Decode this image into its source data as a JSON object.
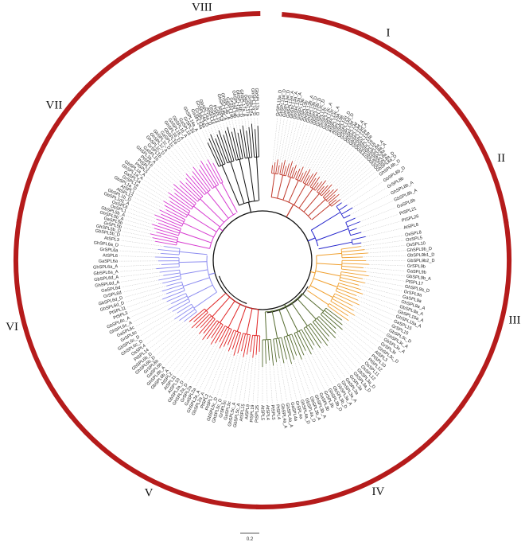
{
  "figure": {
    "type": "circular phylogenetic tree",
    "background": "#ffffff",
    "scale_bar_label": "0.2"
  },
  "colors": {
    "arc": "#b51b1b",
    "backbone": "#111111",
    "I": "#c0392b",
    "II": "#2222cc",
    "III": "#f0a030",
    "IV": "#556b2f",
    "V": "#e02222",
    "VI": "#8c8cf0",
    "VII": "#d63ad0",
    "VIII": "#111111"
  },
  "groups": [
    {
      "id": "I",
      "label": "I",
      "color_key": "I",
      "leaves": [
        "GrSPL13a_D",
        "GhSPL13a_D",
        "GbSPL13a_D",
        "GaSPL13a_A",
        "GhSPL13a_A",
        "GbSPL13a_A",
        "GaSPL13b",
        "GrSPL13b",
        "GhSPL13b_A",
        "GhSPL13b_D",
        "GbSPL13b_D",
        "GbSPL13c_D",
        "GrSPL13c",
        "GhSPL13c_A",
        "GaSPL13c",
        "GbSPL13c_A",
        "AtSPL13A",
        "AtSPL13B",
        "GhSPL13d_D",
        "GbSPL13d_D",
        "GrSPL13d",
        "GaSPL13d",
        "GhSPL13d_A",
        "GbSPL13d_A",
        "GhSPL13e",
        "GbSPL13e",
        "GrSPL13e",
        "PtSPL16",
        "PtSPL18",
        "GbSPL8a_A",
        "GhSPL8a_A",
        "GaSPL8a",
        "GrSPL8a",
        "GhSPL8a_D",
        "GbSPL8a_D"
      ]
    },
    {
      "id": "II",
      "label": "II",
      "color_key": "II",
      "leaves": [
        "GhSPL8b_D",
        "GbSPL8b_D",
        "GrSPL8b",
        "GhSPL8b_A",
        "GbSPL8b_A",
        "GaSPL8b",
        "PtSPL21",
        "PtSPL26",
        "AtSPL8",
        "OsSPL8"
      ]
    },
    {
      "id": "III",
      "label": "III",
      "color_key": "III",
      "leaves": [
        "OsSPL5",
        "OsSPL10",
        "GhSPL9b_D",
        "GbSPL9b1_D",
        "GbSPL9b2_D",
        "GrSPL9b",
        "GaSPL9b",
        "GbSPL9b_A",
        "PtSPL17",
        "GhSPL9a_D",
        "GrSPL9a",
        "GaSPL9a",
        "GhSPL9a_A",
        "GbSPL9a_A",
        "GbSPL15a_A",
        "GhSPL15a_A",
        "GaSPL15",
        "GrSPL15",
        "GbSPL3c_D",
        "GhSPL3c_A",
        "GbSPL3c_A",
        "GrSPL3c"
      ]
    },
    {
      "id": "IV",
      "label": "IV",
      "color_key": "IV",
      "leaves": [
        "GhSPL3c_D",
        "AtSPL3",
        "PtSPL10",
        "PtSPL12",
        "OsSPL11",
        "OsSPL12",
        "GbSPL3a_D",
        "GhSPL3a_D",
        "GrSPL3a",
        "GaSPL3a",
        "GhSPL3a_A",
        "GbSPL3a_A",
        "GbSPL3b_D",
        "GhSPL3b_D",
        "GrSPL3b",
        "GaSPL3b",
        "GhSPL3b_A",
        "GbSPL3b_A",
        "GbSPL4a_D",
        "GhSPL4a_D",
        "GrSPL4a",
        "GaSPL4a",
        "GhSPL4a_A",
        "GbSPL4a_A",
        "PtSPL4",
        "PtSPL5",
        "AtSPL4",
        "AtSPL5"
      ]
    },
    {
      "id": "V",
      "label": "V",
      "color_key": "V",
      "leaves": [
        "PtSPL25",
        "PtSPL19",
        "AtSPL9",
        "AtSPL15",
        "GbSPL5c_A",
        "GhSPL5c_A",
        "GaSPL5c",
        "GrSPL5c",
        "GhSPL5c_D",
        "GbSPL5c_D",
        "PtSPL7",
        "PtSPL2",
        "GbSPL2a_A",
        "GhSPL2a_A",
        "GaSPL2a",
        "GrSPL2a",
        "GhSPL2a_D",
        "GbSPL2a_D",
        "AtSPL10",
        "AtSPL11",
        "AtSPL2",
        "GbSPL6b_A",
        "GhSPL6b_A",
        "GaSPL6b",
        "GrSPL6b",
        "GhSPL6b_D",
        "GbSPL6b_D"
      ]
    },
    {
      "id": "VI",
      "label": "VI",
      "color_key": "VI",
      "leaves": [
        "PtSPL14",
        "OsSPL4",
        "GhSPL6c_D",
        "GbSPL6c_D",
        "GrSPL6c",
        "GaSPL6c",
        "GhSPL6c_A",
        "GbSPL6c_A",
        "PtSPL3",
        "PtSPL11",
        "GhSPL6d_D",
        "GbSPL6d_D",
        "GrSPL6d",
        "GaSPL6d",
        "GhSPL6d_A",
        "GbSPL6d_A",
        "GbSPL6a_A",
        "GhSPL6a_A",
        "GaSPL6a",
        "AtSPL6",
        "GrSPL6a",
        "GhSPL6a_D",
        "AtSPL3"
      ]
    },
    {
      "id": "VII",
      "label": "VII",
      "color_key": "VII",
      "leaves": [
        "GbSPL5b_D",
        "GhSPL5b_D",
        "GrSPL5b",
        "GaSPL5b",
        "GhSPL5b_A",
        "GbSPL5b_A",
        "OsSPL1",
        "OsSPL6",
        "GbSPL1d1_A",
        "GbSPL1b_D",
        "AtSPL12",
        "AtSPL1",
        "GbSPL1a_D",
        "GrSPL1a",
        "GaSPL1a",
        "GhSPL1a_A",
        "GbSPL1a_A",
        "PtSPL5",
        "PtSPL1",
        "PtSPL6",
        "GhSPL1b_A",
        "GaSPL1b",
        "GrSPL1b",
        "GhSPL1c_D",
        "GhSPL1c_A",
        "GbSPL1c_D",
        "GaSPL1c",
        "GbSPL16",
        "GhSPL16_D",
        "GhSPL16_A",
        "GbSPL16_A",
        "GaSPL16",
        "GrSPL16",
        "GhSPL14a_A"
      ]
    },
    {
      "id": "VIII",
      "label": "VIII",
      "color_key": "VIII",
      "leaves": [
        "GaSPL14a",
        "GrSPL14a",
        "GhSPL14a_D",
        "GbSPL14a_D",
        "AtSPL14",
        "OsSPL14",
        "PtSPL15",
        "PtSPL9",
        "GbSPL14b_A",
        "GhSPL14b_A",
        "GaSPL14b",
        "GrSPL14b",
        "GhSPL14b_D",
        "GbSPL14b_D",
        "GhSPL17a_A",
        "GaSPL17a",
        "GrSPL17a",
        "GhSPL17a_D",
        "GbSPL17a_D"
      ]
    }
  ]
}
